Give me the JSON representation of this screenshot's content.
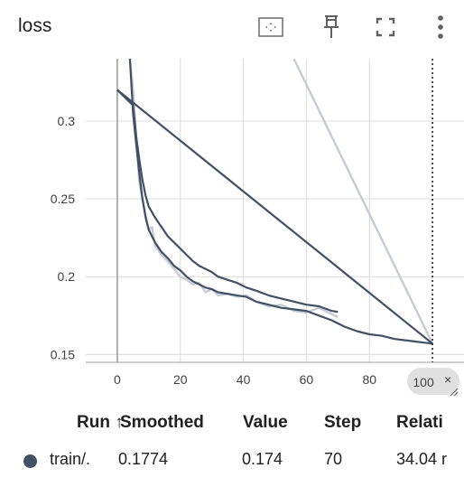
{
  "card": {
    "title": "loss"
  },
  "toolbar": {
    "icons": [
      "fit-domain-icon",
      "pin-icon",
      "fullscreen-icon",
      "more-vert-icon"
    ]
  },
  "colors": {
    "smoothed_line": "#425066",
    "raw_line": "#c5cbd5",
    "axis": "#9e9e9e",
    "grid": "#e0e0e0",
    "step_marker_bg": "#e0e0e0",
    "run_color": "#425066"
  },
  "chart_data": {
    "type": "line",
    "title": "loss",
    "xlabel": "",
    "ylabel": "",
    "x_ticks": [
      0,
      20,
      40,
      60,
      80
    ],
    "x_tick_labels": [
      "0",
      "20",
      "40",
      "60",
      "80"
    ],
    "y_ticks": [
      0.15,
      0.2,
      0.25,
      0.3
    ],
    "y_tick_labels": [
      "0.15",
      "0.2",
      "0.25",
      "0.3"
    ],
    "xlim": [
      -10,
      110
    ],
    "ylim": [
      0.145,
      0.34
    ],
    "grid": true,
    "legend": "none",
    "step_marker": {
      "step": 100,
      "label": "100"
    },
    "series": [
      {
        "role": "smoothed",
        "x": [
          0,
          5,
          6,
          7,
          8,
          9,
          10,
          12,
          14,
          16,
          18,
          20,
          22,
          24,
          26,
          28,
          30,
          32,
          35,
          38,
          41,
          44,
          48,
          52,
          56,
          60,
          64,
          68,
          70
        ],
        "values": [
          0.32,
          0.31,
          0.29,
          0.275,
          0.262,
          0.252,
          0.245,
          0.238,
          0.232,
          0.226,
          0.222,
          0.218,
          0.214,
          0.21,
          0.207,
          0.205,
          0.203,
          0.2,
          0.198,
          0.196,
          0.193,
          0.191,
          0.188,
          0.186,
          0.184,
          0.182,
          0.181,
          0.178,
          0.1774
        ]
      },
      {
        "role": "smoothed",
        "x": [
          0,
          100
        ],
        "values": [
          0.32,
          0.157
        ]
      },
      {
        "role": "smoothed",
        "x": [
          4,
          5,
          6,
          7,
          8,
          9,
          10,
          12,
          14,
          16,
          18,
          20,
          22,
          24,
          26,
          28,
          30,
          32,
          35,
          38,
          41,
          44,
          48,
          52,
          56,
          60,
          64,
          68,
          72,
          76,
          80,
          84,
          88,
          92,
          96,
          100
        ],
        "values": [
          0.34,
          0.305,
          0.285,
          0.266,
          0.25,
          0.238,
          0.23,
          0.222,
          0.216,
          0.212,
          0.207,
          0.204,
          0.2,
          0.197,
          0.195,
          0.193,
          0.192,
          0.19,
          0.189,
          0.188,
          0.187,
          0.184,
          0.182,
          0.18,
          0.179,
          0.178,
          0.175,
          0.172,
          0.168,
          0.165,
          0.163,
          0.162,
          0.16,
          0.159,
          0.158,
          0.157
        ]
      },
      {
        "role": "raw",
        "x": [
          4,
          5,
          6,
          7,
          8,
          9,
          10,
          11,
          12,
          14,
          16,
          18,
          20,
          22,
          24,
          26,
          28,
          30,
          32,
          35,
          38,
          41,
          44,
          48,
          52,
          56,
          60,
          64,
          68,
          70
        ],
        "values": [
          0.34,
          0.32,
          0.29,
          0.26,
          0.25,
          0.24,
          0.23,
          0.232,
          0.22,
          0.214,
          0.21,
          0.205,
          0.2,
          0.198,
          0.195,
          0.196,
          0.19,
          0.192,
          0.188,
          0.189,
          0.187,
          0.188,
          0.184,
          0.181,
          0.182,
          0.178,
          0.177,
          0.18,
          0.176,
          0.174
        ]
      },
      {
        "role": "raw",
        "x": [
          56,
          100
        ],
        "values": [
          0.34,
          0.157
        ]
      }
    ]
  },
  "table": {
    "headers": [
      "Run ↑",
      "Smoothed",
      "Value",
      "Step",
      "Relati"
    ],
    "rows": [
      {
        "run": "train/.",
        "smoothed": "0.1774",
        "value": "0.174",
        "step": "70",
        "relative": "34.04 r"
      }
    ]
  }
}
